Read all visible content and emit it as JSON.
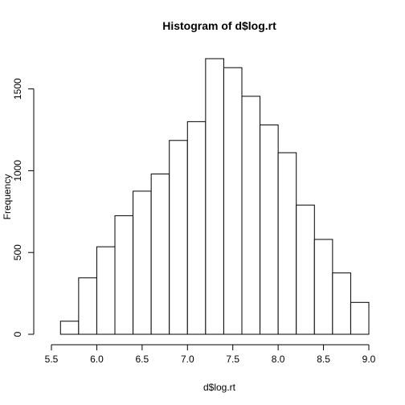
{
  "chart_data": {
    "type": "bar",
    "title": "Histogram of d$log.rt",
    "xlabel": "d$log.rt",
    "ylabel": "Frequency",
    "bins": [
      {
        "start": 5.6,
        "end": 5.8,
        "count": 80
      },
      {
        "start": 5.8,
        "end": 6.0,
        "count": 345
      },
      {
        "start": 6.0,
        "end": 6.2,
        "count": 535
      },
      {
        "start": 6.2,
        "end": 6.4,
        "count": 725
      },
      {
        "start": 6.4,
        "end": 6.6,
        "count": 875
      },
      {
        "start": 6.6,
        "end": 6.8,
        "count": 980
      },
      {
        "start": 6.8,
        "end": 7.0,
        "count": 1185
      },
      {
        "start": 7.0,
        "end": 7.2,
        "count": 1300
      },
      {
        "start": 7.2,
        "end": 7.4,
        "count": 1685
      },
      {
        "start": 7.4,
        "end": 7.6,
        "count": 1630
      },
      {
        "start": 7.6,
        "end": 7.8,
        "count": 1455
      },
      {
        "start": 7.8,
        "end": 8.0,
        "count": 1280
      },
      {
        "start": 8.0,
        "end": 8.2,
        "count": 1110
      },
      {
        "start": 8.2,
        "end": 8.4,
        "count": 790
      },
      {
        "start": 8.4,
        "end": 8.6,
        "count": 580
      },
      {
        "start": 8.6,
        "end": 8.8,
        "count": 375
      },
      {
        "start": 8.8,
        "end": 9.0,
        "count": 195
      }
    ],
    "xlim": [
      5.5,
      9.0
    ],
    "ylim": [
      0,
      1685
    ],
    "x_ticks": [
      5.5,
      6.0,
      6.5,
      7.0,
      7.5,
      8.0,
      8.5,
      9.0
    ],
    "x_tick_labels": [
      "5.5",
      "6.0",
      "6.5",
      "7.0",
      "7.5",
      "8.0",
      "8.5",
      "9.0"
    ],
    "y_ticks": [
      0,
      500,
      1000,
      1500
    ],
    "y_tick_labels": [
      "0",
      "500",
      "1000",
      "1500"
    ],
    "grid": false,
    "legend": "none",
    "colors": {
      "bar_fill": "#ffffff",
      "bar_stroke": "#000000",
      "background": "#ffffff"
    }
  }
}
